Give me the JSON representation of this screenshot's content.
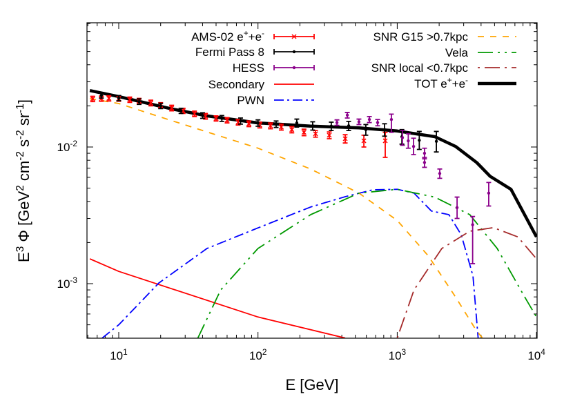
{
  "chart_data": {
    "type": "line",
    "xlabel": "E [GeV]",
    "ylabel": "E^{3} Φ [GeV^{2} cm^{-2} s^{-2} sr^{-1}]",
    "xscale": "log",
    "yscale": "log",
    "xlim": [
      5.9,
      10000
    ],
    "ylim": [
      0.0004,
      0.081
    ],
    "grid": false,
    "legend_placement": "top",
    "x_tick_labels": [
      {
        "value": 10,
        "label": "10^{1}"
      },
      {
        "value": 100,
        "label": "10^{2}"
      },
      {
        "value": 1000,
        "label": "10^{3}"
      },
      {
        "value": 10000,
        "label": "10^{4}"
      }
    ],
    "y_tick_labels": [
      {
        "value": 0.01,
        "label": "10^{-2}"
      },
      {
        "value": 0.001,
        "label": "10^{-3}"
      }
    ],
    "data_series": [
      {
        "name": "AMS-02 e^{+}+e^{-}",
        "color": "#ff0000",
        "marker": "x",
        "points": [
          [
            6.5,
            0.0225,
            0.0215,
            0.0235
          ],
          [
            7.5,
            0.0226,
            0.0216,
            0.0236
          ],
          [
            8.5,
            0.0227,
            0.0217,
            0.0237
          ],
          [
            10,
            0.0226,
            0.0216,
            0.0236
          ],
          [
            12,
            0.0222,
            0.0212,
            0.0232
          ],
          [
            14,
            0.0217,
            0.0207,
            0.0227
          ],
          [
            17,
            0.021,
            0.02,
            0.022
          ],
          [
            20,
            0.0202,
            0.0193,
            0.0211
          ],
          [
            24,
            0.0193,
            0.0184,
            0.0202
          ],
          [
            29,
            0.0184,
            0.0176,
            0.0192
          ],
          [
            35,
            0.0175,
            0.0167,
            0.0183
          ],
          [
            42,
            0.0168,
            0.016,
            0.0176
          ],
          [
            50,
            0.0162,
            0.0155,
            0.0169
          ],
          [
            60,
            0.0157,
            0.015,
            0.0164
          ],
          [
            72,
            0.0152,
            0.0145,
            0.0159
          ],
          [
            86,
            0.0148,
            0.0141,
            0.0155
          ],
          [
            103,
            0.0145,
            0.0138,
            0.0152
          ],
          [
            123,
            0.0143,
            0.0136,
            0.015
          ],
          [
            147,
            0.014,
            0.0133,
            0.0147
          ],
          [
            175,
            0.0134,
            0.0127,
            0.0141
          ],
          [
            214,
            0.0128,
            0.0121,
            0.0135
          ],
          [
            259,
            0.0125,
            0.0118,
            0.0132
          ],
          [
            325,
            0.0122,
            0.0115,
            0.0129
          ],
          [
            423,
            0.0115,
            0.0107,
            0.0123
          ],
          [
            576,
            0.0111,
            0.01,
            0.0122
          ],
          [
            820,
            0.0111,
            0.0084,
            0.0128
          ]
        ]
      },
      {
        "name": "Fermi Pass 8",
        "color": "#000000",
        "marker": "dot",
        "points": [
          [
            7.5,
            0.0238,
            0.0228,
            0.0248
          ],
          [
            10,
            0.0228,
            0.0218,
            0.0238
          ],
          [
            14,
            0.0215,
            0.0205,
            0.0225
          ],
          [
            20,
            0.02,
            0.0191,
            0.0209
          ],
          [
            28,
            0.0184,
            0.0176,
            0.0192
          ],
          [
            40,
            0.017,
            0.0162,
            0.0178
          ],
          [
            55,
            0.0162,
            0.0154,
            0.017
          ],
          [
            75,
            0.0155,
            0.0147,
            0.0163
          ],
          [
            100,
            0.015,
            0.0142,
            0.0158
          ],
          [
            135,
            0.0147,
            0.0139,
            0.0155
          ],
          [
            190,
            0.015,
            0.014,
            0.016
          ],
          [
            247,
            0.0143,
            0.0133,
            0.0153
          ],
          [
            336,
            0.0142,
            0.0132,
            0.0152
          ],
          [
            448,
            0.0143,
            0.0132,
            0.0154
          ],
          [
            595,
            0.0134,
            0.0122,
            0.0146
          ],
          [
            811,
            0.0134,
            0.012,
            0.0148
          ],
          [
            1080,
            0.0119,
            0.0105,
            0.0134
          ],
          [
            1440,
            0.0112,
            0.0096,
            0.013
          ],
          [
            1910,
            0.011,
            0.0092,
            0.013
          ]
        ]
      },
      {
        "name": "HESS",
        "color": "#8b008b",
        "marker": "dot",
        "points": [
          [
            369,
            0.0151,
            0.0144,
            0.0158
          ],
          [
            438,
            0.0171,
            0.0163,
            0.0179
          ],
          [
            531,
            0.0153,
            0.0146,
            0.016
          ],
          [
            631,
            0.0159,
            0.0151,
            0.0167
          ],
          [
            723,
            0.0151,
            0.0143,
            0.0159
          ],
          [
            908,
            0.0159,
            0.0128,
            0.0174
          ],
          [
            1090,
            0.0117,
            0.0103,
            0.0132
          ],
          [
            1200,
            0.0111,
            0.0098,
            0.0125
          ],
          [
            1310,
            0.0101,
            0.0088,
            0.0116
          ],
          [
            1570,
            0.009,
            0.0082,
            0.0098
          ],
          [
            1570,
            0.0077,
            0.0071,
            0.0084
          ],
          [
            2020,
            0.0064,
            0.0059,
            0.0069
          ],
          [
            2690,
            0.0036,
            0.003,
            0.0043
          ],
          [
            3480,
            0.0027,
            0.0014,
            0.0031
          ],
          [
            4540,
            0.0046,
            0.0037,
            0.0055
          ]
        ]
      }
    ],
    "model_series": [
      {
        "name": "Secondary",
        "color": "#ff0000",
        "style": "solid",
        "x": [
          6.2,
          10,
          100,
          423
        ],
        "y": [
          0.00152,
          0.00123,
          0.00057,
          0.0004
        ]
      },
      {
        "name": "PWN",
        "color": "#0000ff",
        "style": "dash-dot",
        "x": [
          7.6,
          10,
          19.4,
          43,
          100,
          239,
          423,
          668,
          1000,
          1320,
          1760,
          2350,
          2880,
          3500,
          3810
        ],
        "y": [
          0.0004,
          0.0005,
          0.00101,
          0.00181,
          0.00256,
          0.00364,
          0.00433,
          0.00486,
          0.0049,
          0.0046,
          0.0034,
          0.0032,
          0.00228,
          0.00114,
          0.0004
        ]
      },
      {
        "name": "SNR G15 >0.7kpc",
        "color": "#ffa500",
        "style": "dashed",
        "x": [
          6.2,
          10,
          24,
          100,
          239,
          531,
          1000,
          1670,
          2620,
          3720,
          4100
        ],
        "y": [
          0.0226,
          0.0208,
          0.0156,
          0.0098,
          0.0069,
          0.0046,
          0.0029,
          0.0016,
          0.0008,
          0.00045,
          0.0004
        ]
      },
      {
        "name": "Vela",
        "color": "#009900",
        "style": "long-dash-dot",
        "x": [
          37,
          54,
          100,
          239,
          531,
          1000,
          1860,
          3320,
          5220,
          8230,
          10000
        ],
        "y": [
          0.0004,
          0.0009,
          0.00181,
          0.0032,
          0.0046,
          0.0049,
          0.0043,
          0.0032,
          0.00181,
          0.0008,
          0.00057
        ]
      },
      {
        "name": "SNR local <0.7kpc",
        "color": "#a52a2a",
        "style": "dot-long-dash",
        "x": [
          1000,
          1320,
          2090,
          3320,
          4900,
          7340,
          10000
        ],
        "y": [
          0.0004,
          0.0009,
          0.00181,
          0.00242,
          0.00257,
          0.0022,
          0.00152
        ]
      },
      {
        "name": "TOT e^{+}+e^{-}",
        "color": "#000000",
        "style": "thick-solid",
        "x": [
          6.2,
          10,
          24,
          43,
          100,
          239,
          531,
          1000,
          1860,
          2620,
          3720,
          4650,
          6560,
          10000
        ],
        "y": [
          0.0259,
          0.0234,
          0.019,
          0.0169,
          0.015,
          0.0142,
          0.0138,
          0.0131,
          0.0119,
          0.0101,
          0.0077,
          0.0061,
          0.0049,
          0.0022
        ]
      }
    ]
  }
}
